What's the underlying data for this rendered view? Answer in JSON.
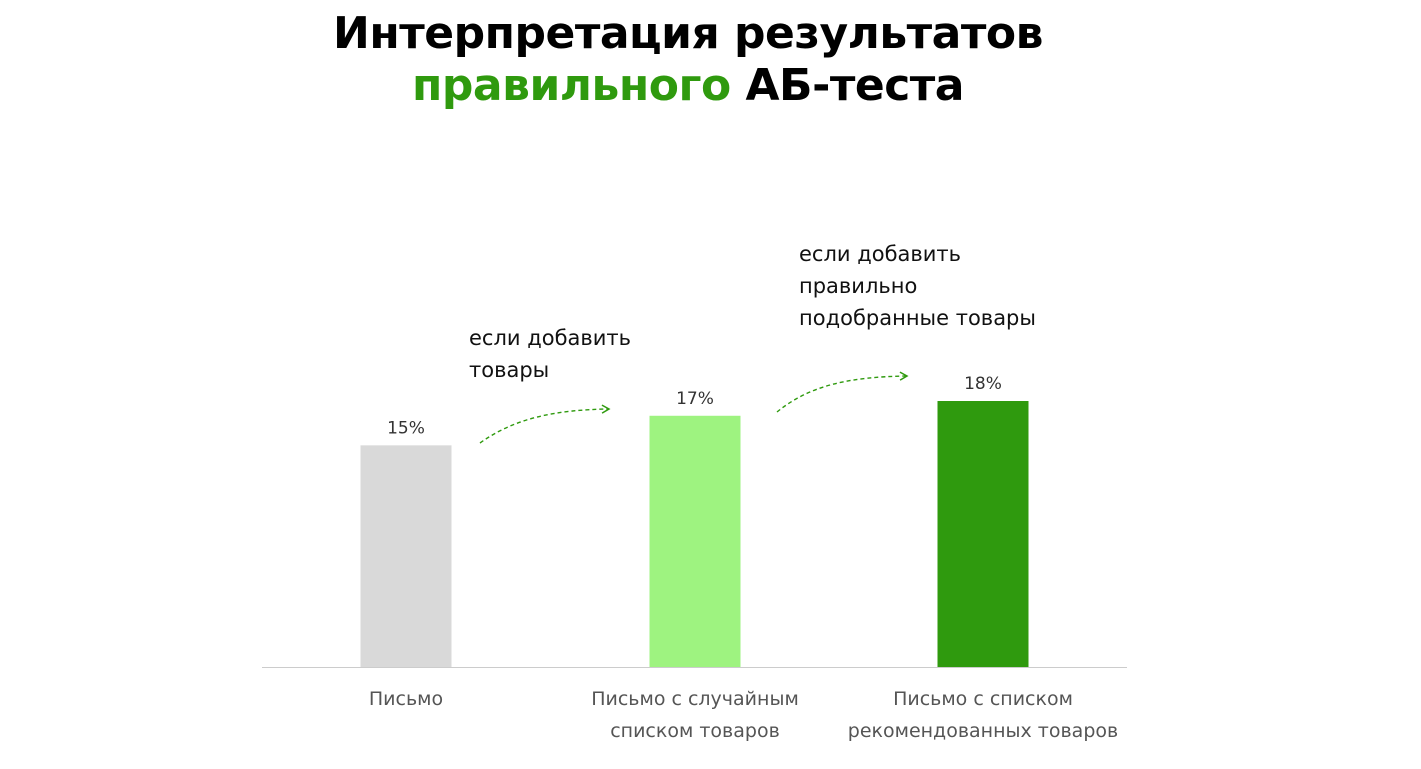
{
  "title": {
    "line1": "Интерпретация результатов",
    "line2_accent": "правильного",
    "line2_rest": "АБ-теста"
  },
  "colors": {
    "accent": "#2f9a0e",
    "arrow": "#2f9a0e"
  },
  "chart_data": {
    "type": "bar",
    "categories": [
      [
        "Письмо"
      ],
      [
        "Письмо с случайным",
        "списком товаров"
      ],
      [
        "Письмо с списком",
        "рекомендованных товаров"
      ]
    ],
    "values": [
      15,
      17,
      18
    ],
    "value_labels": [
      "15%",
      "17%",
      "18%"
    ],
    "bar_colors": [
      "#d9d9d9",
      "#9ef380",
      "#2f9a0e"
    ],
    "ylim": [
      0,
      18
    ],
    "grid": false,
    "annotations": [
      {
        "lines": [
          "если добавить",
          "товары"
        ],
        "from": 0,
        "to": 1
      },
      {
        "lines": [
          "если добавить",
          "правильно",
          "подобранные товары"
        ],
        "from": 1,
        "to": 2
      }
    ]
  }
}
